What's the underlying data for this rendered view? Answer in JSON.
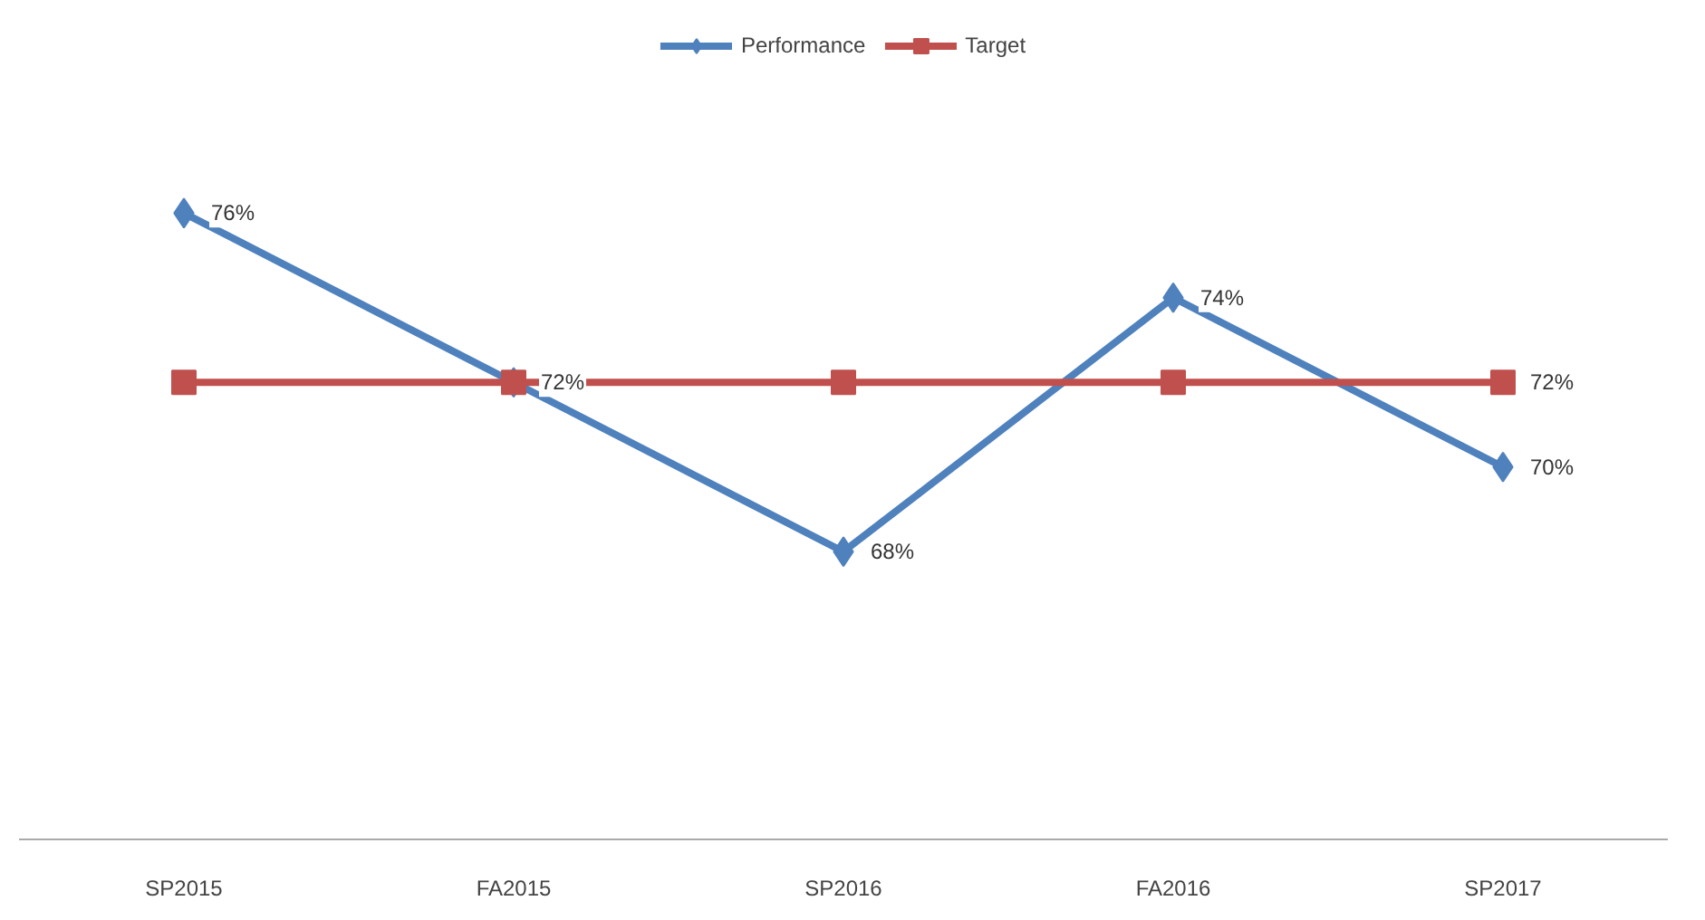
{
  "chart_data": {
    "type": "line",
    "categories": [
      "SP2015",
      "FA2015",
      "SP2016",
      "FA2016",
      "SP2017"
    ],
    "series": [
      {
        "name": "Performance",
        "color": "#4f81bd",
        "marker": "diamond",
        "values": [
          76,
          72,
          68,
          74,
          70
        ],
        "value_labels": [
          "76%",
          "72%",
          "68%",
          "74%",
          "70%"
        ]
      },
      {
        "name": "Target",
        "color": "#c0504d",
        "marker": "square",
        "values": [
          72,
          72,
          72,
          72,
          72
        ],
        "value_labels": [
          null,
          null,
          null,
          null,
          "72%"
        ]
      }
    ],
    "legend": "top",
    "grid": false
  }
}
